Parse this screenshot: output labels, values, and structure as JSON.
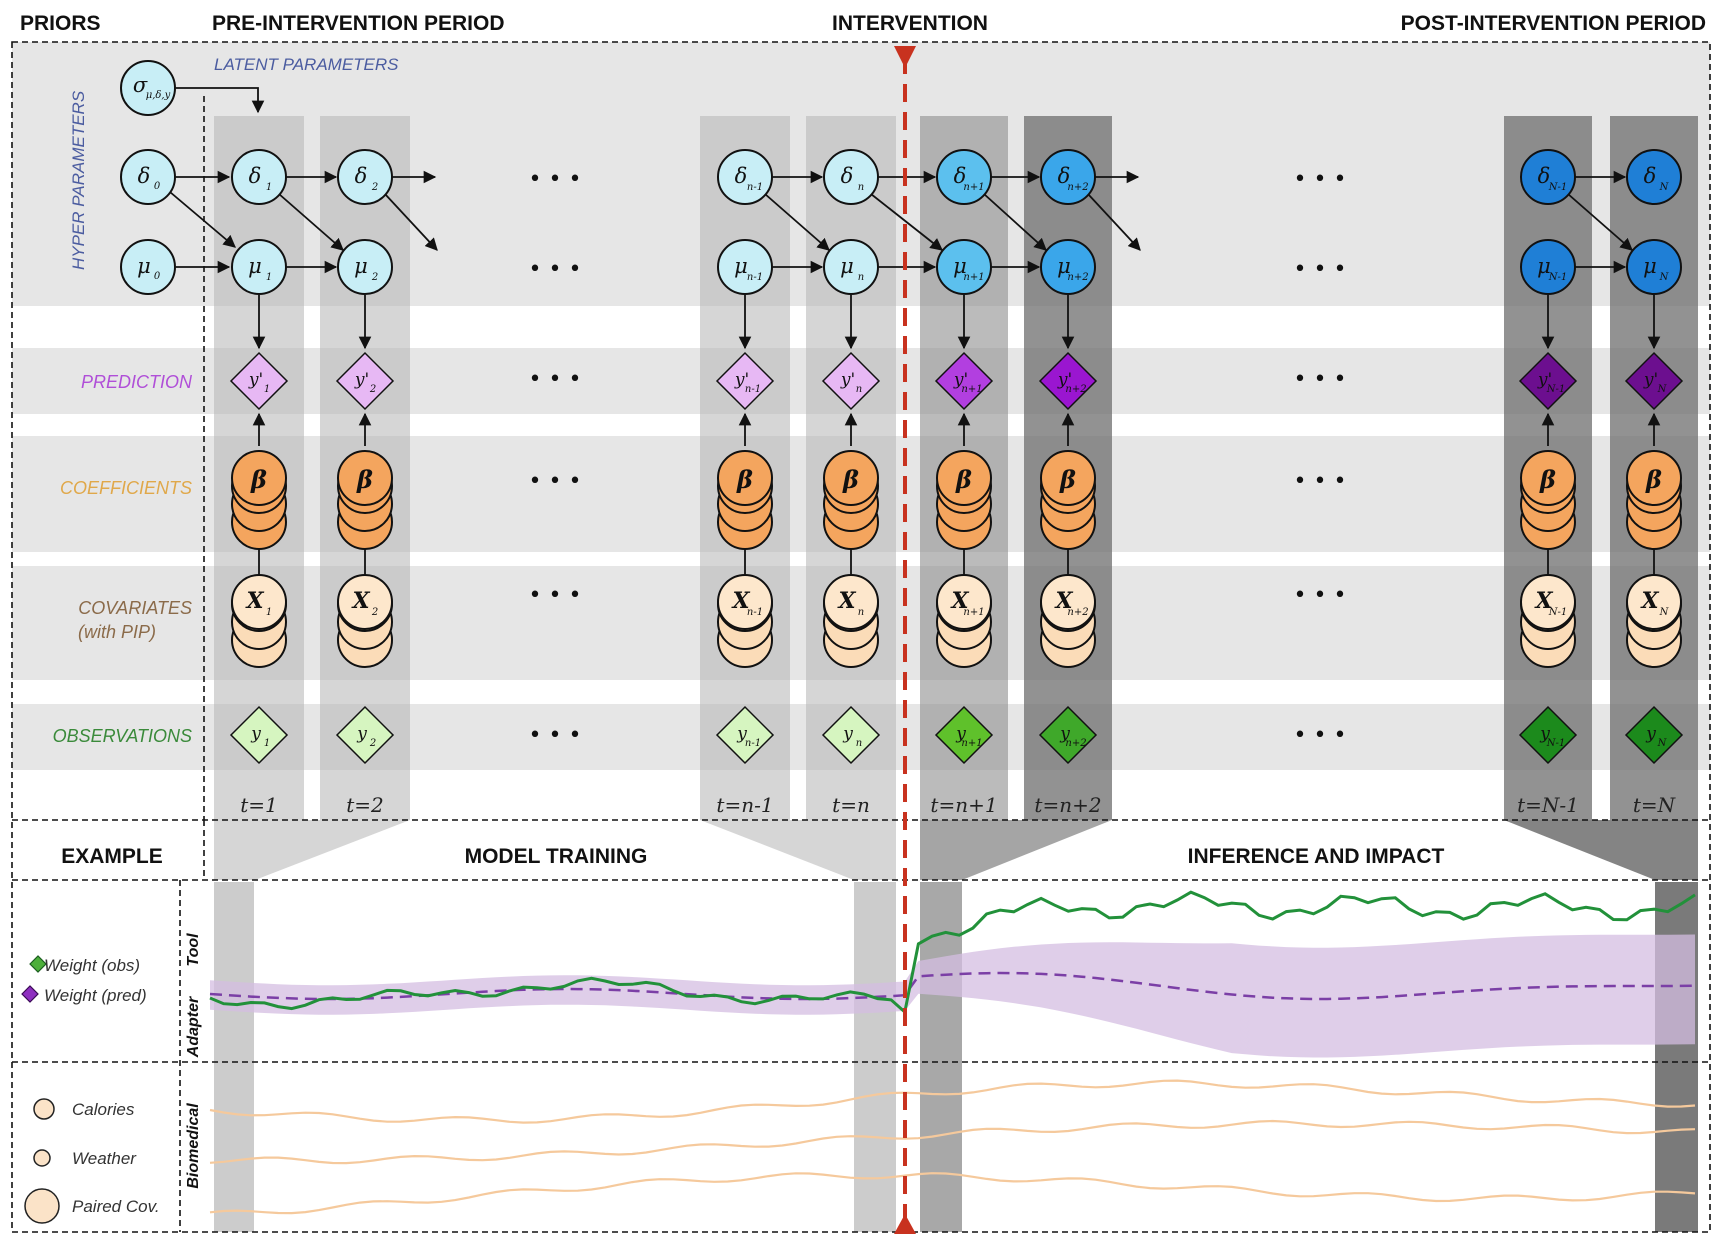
{
  "headers": {
    "priors": "PRIORS",
    "pre": "PRE-INTERVENTION PERIOD",
    "intervention": "INTERVENTION",
    "post": "POST-INTERVENTION PERIOD",
    "latent": "LATENT PARAMETERS",
    "hyper": "HYPER PARAMETERS"
  },
  "row_labels": {
    "prediction": "PREDICTION",
    "coefficients": "COEFFICIENTS",
    "covariates_1": "COVARIATES",
    "covariates_2": "(with PIP)",
    "observations": "OBSERVATIONS"
  },
  "priors": {
    "sigma": "σ",
    "sigma_sub": "μ,δ,y",
    "delta0": "δ",
    "delta0_sub": "0",
    "mu0": "μ",
    "mu0_sub": "0"
  },
  "time_columns": [
    {
      "t": "t=1",
      "sub": "1",
      "ysub": "1"
    },
    {
      "t": "t=2",
      "sub": "2",
      "ysub": "2"
    },
    {
      "t": "t=n-1",
      "sub": "n-1",
      "ysub": "n-1"
    },
    {
      "t": "t=n",
      "sub": "n",
      "ysub": "n"
    },
    {
      "t": "t=n+1",
      "sub": "n+1",
      "ysub": "n+1"
    },
    {
      "t": "t=n+2",
      "sub": "n+2",
      "ysub": "n+2"
    },
    {
      "t": "t=N-1",
      "sub": "N-1",
      "ysub": "N-1"
    },
    {
      "t": "t=N",
      "sub": "N",
      "ysub": "N"
    }
  ],
  "symbols": {
    "delta": "δ",
    "mu": "μ",
    "y": "y",
    "y_pred": "y'",
    "beta": "β",
    "x": "X",
    "ellipsis": "• • •"
  },
  "example": {
    "title": "EXAMPLE",
    "model_training": "MODEL TRAINING",
    "inference": "INFERENCE AND IMPACT",
    "legend_obs": "Weight (obs)",
    "legend_pred": "Weight (pred)",
    "legend_calories": "Calories",
    "legend_weather": "Weather",
    "legend_paired": "Paired Cov.",
    "side_tool": "Tool",
    "side_adapter": "Adapter",
    "side_biomedical": "Biomedical"
  },
  "colors": {
    "obs_line": "#22913a",
    "pred_line": "#7b3fa6",
    "pred_band": "#d4bde2",
    "intervention": "#c8321f",
    "covariate": "#f5c99c",
    "beta": "#f4a55e",
    "delta_pre": "#c8eef6",
    "delta_mid": "#5cc0ee",
    "delta_post": "#1f7fd6",
    "obs_pre": "#d6f5c0",
    "obs_mid": "#5fc12b",
    "obs_post": "#1c8a1c",
    "pred_pre": "#e7b8f4",
    "pred_mid": "#b23fe0",
    "pred_post": "#6c0f8f"
  }
}
